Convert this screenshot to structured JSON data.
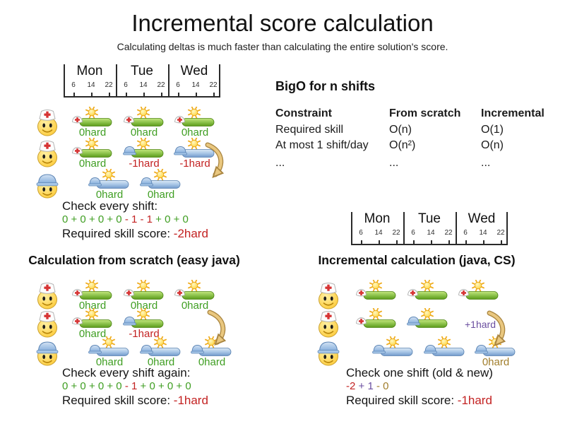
{
  "title": "Incremental score calculation",
  "subtitle": "Calculating deltas is much faster than calculating the entire solution's score.",
  "timeline": {
    "days": [
      "Mon",
      "Tue",
      "Wed"
    ],
    "hours": [
      "6",
      "14",
      "22"
    ]
  },
  "bigo": {
    "heading": "BigO for n shifts",
    "columns": [
      "Constraint",
      "From scratch",
      "Incremental"
    ],
    "rows": [
      [
        "Required skill",
        "O(n)",
        "O(1)"
      ],
      [
        "At most 1 shift/day",
        "O(n²)",
        "O(n)"
      ],
      [
        "...",
        "...",
        "..."
      ]
    ]
  },
  "colors": {
    "green": "#3f9e22",
    "red": "#c32222",
    "purple": "#6b4fa0",
    "brown": "#a17e2c"
  },
  "sections": {
    "initial": {
      "check_title": "Check every shift:",
      "expression": [
        {
          "t": "0 + 0 + 0 + 0 ",
          "c": "green"
        },
        {
          "t": "- 1 - 1",
          "c": "red"
        },
        {
          "t": " + 0 + 0",
          "c": "green"
        }
      ],
      "score_prefix": "Required skill score: ",
      "score_value": "-2hard"
    },
    "scratch": {
      "heading": "Calculation from scratch (easy java)",
      "check_title": "Check every shift again:",
      "expression": [
        {
          "t": "0 + 0 + 0 + 0 ",
          "c": "green"
        },
        {
          "t": "- 1",
          "c": "red"
        },
        {
          "t": " + 0 + 0 + 0",
          "c": "green"
        }
      ],
      "score_prefix": "Required skill score: ",
      "score_value": "-1hard"
    },
    "incremental": {
      "heading": "Incremental calculation (java, CS)",
      "check_title": "Check one shift (old & new)",
      "expression": [
        {
          "t": "-2",
          "c": "red"
        },
        {
          "t": " + 1",
          "c": "purple"
        },
        {
          "t": " - 0",
          "c": "brown"
        }
      ],
      "score_prefix": "Required skill score: ",
      "score_value": "-1hard",
      "move_label": {
        "t": "+1hard",
        "c": "purple"
      }
    }
  },
  "grids": [
    {
      "id": "initial",
      "employees": [
        "nurse",
        "nurse",
        "builder"
      ],
      "shifts": [
        {
          "r": 0,
          "col": 0,
          "bar": "green",
          "cap": "nurse",
          "label": "0hard",
          "c": "green"
        },
        {
          "r": 0,
          "col": 1,
          "bar": "green",
          "cap": "nurse",
          "label": "0hard",
          "c": "green"
        },
        {
          "r": 0,
          "col": 2,
          "bar": "green",
          "cap": "nurse",
          "label": "0hard",
          "c": "green"
        },
        {
          "r": 1,
          "col": 0,
          "bar": "green",
          "cap": "nurse",
          "label": "0hard",
          "c": "green"
        },
        {
          "r": 1,
          "col": 1,
          "bar": "green",
          "cap": "builder",
          "label": "-1hard",
          "c": "red"
        },
        {
          "r": 1,
          "col": 2,
          "bar": "blue",
          "cap": "builder",
          "label": "-1hard",
          "c": "red"
        },
        {
          "r": 2,
          "col": 0,
          "off": 1,
          "bar": "blue",
          "cap": "builder",
          "label": "0hard",
          "c": "green"
        },
        {
          "r": 2,
          "col": 1,
          "off": 1,
          "bar": "blue",
          "cap": "builder",
          "label": "0hard",
          "c": "green"
        }
      ]
    },
    {
      "id": "scratch",
      "employees": [
        "nurse",
        "nurse",
        "builder"
      ],
      "shifts": [
        {
          "r": 0,
          "col": 0,
          "bar": "green",
          "cap": "nurse",
          "label": "0hard",
          "c": "green"
        },
        {
          "r": 0,
          "col": 1,
          "bar": "green",
          "cap": "nurse",
          "label": "0hard",
          "c": "green"
        },
        {
          "r": 0,
          "col": 2,
          "bar": "green",
          "cap": "nurse",
          "label": "0hard",
          "c": "green"
        },
        {
          "r": 1,
          "col": 0,
          "bar": "green",
          "cap": "nurse",
          "label": "0hard",
          "c": "green"
        },
        {
          "r": 1,
          "col": 1,
          "bar": "green",
          "cap": "builder",
          "label": "-1hard",
          "c": "red"
        },
        {
          "r": 2,
          "col": 0,
          "off": 1,
          "bar": "blue",
          "cap": "builder",
          "label": "0hard",
          "c": "green"
        },
        {
          "r": 2,
          "col": 1,
          "off": 1,
          "bar": "blue",
          "cap": "builder",
          "label": "0hard",
          "c": "green"
        },
        {
          "r": 2,
          "col": 2,
          "off": 1,
          "bar": "blue",
          "cap": "builder",
          "label": "0hard",
          "c": "green"
        }
      ]
    },
    {
      "id": "incremental",
      "employees": [
        "nurse",
        "nurse",
        "builder"
      ],
      "shifts": [
        {
          "r": 0,
          "col": 0,
          "bar": "green",
          "cap": "nurse",
          "label": "",
          "c": "green"
        },
        {
          "r": 0,
          "col": 1,
          "bar": "green",
          "cap": "nurse",
          "label": "",
          "c": "green"
        },
        {
          "r": 0,
          "col": 2,
          "bar": "green",
          "cap": "nurse",
          "label": "",
          "c": "green"
        },
        {
          "r": 1,
          "col": 0,
          "bar": "green",
          "cap": "nurse",
          "label": "",
          "c": "green"
        },
        {
          "r": 1,
          "col": 1,
          "bar": "green",
          "cap": "builder",
          "label": "",
          "c": "green"
        },
        {
          "r": 2,
          "col": 0,
          "off": 1,
          "bar": "blue",
          "cap": "builder",
          "label": "",
          "c": "green"
        },
        {
          "r": 2,
          "col": 1,
          "off": 1,
          "bar": "blue",
          "cap": "builder",
          "label": "",
          "c": "green"
        },
        {
          "r": 2,
          "col": 2,
          "off": 1,
          "bar": "blue",
          "cap": "builder",
          "label": "0hard",
          "c": "brown"
        }
      ]
    }
  ]
}
